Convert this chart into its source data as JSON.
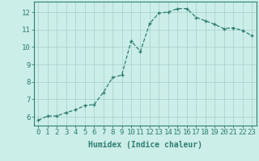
{
  "x": [
    0,
    1,
    2,
    3,
    4,
    5,
    6,
    7,
    8,
    9,
    10,
    11,
    12,
    13,
    14,
    15,
    16,
    17,
    18,
    19,
    20,
    21,
    22,
    23
  ],
  "y": [
    5.8,
    6.05,
    6.05,
    6.25,
    6.4,
    6.65,
    6.7,
    7.4,
    8.25,
    8.4,
    10.35,
    9.75,
    11.35,
    11.95,
    12.0,
    12.2,
    12.2,
    11.7,
    11.5,
    11.3,
    11.05,
    11.1,
    10.95,
    10.65
  ],
  "line_color": "#2e7d72",
  "marker": "+",
  "markersize": 3.5,
  "linewidth": 0.9,
  "linestyle": "--",
  "bg_color": "#cceee8",
  "grid_color": "#aad4ce",
  "xlabel": "Humidex (Indice chaleur)",
  "xlabel_fontsize": 7,
  "ylabel_ticks": [
    6,
    7,
    8,
    9,
    10,
    11,
    12
  ],
  "xlim": [
    -0.5,
    23.5
  ],
  "ylim": [
    5.5,
    12.6
  ],
  "tick_fontsize": 6.5,
  "axis_color": "#2e7d72",
  "markeredgewidth": 1.0
}
